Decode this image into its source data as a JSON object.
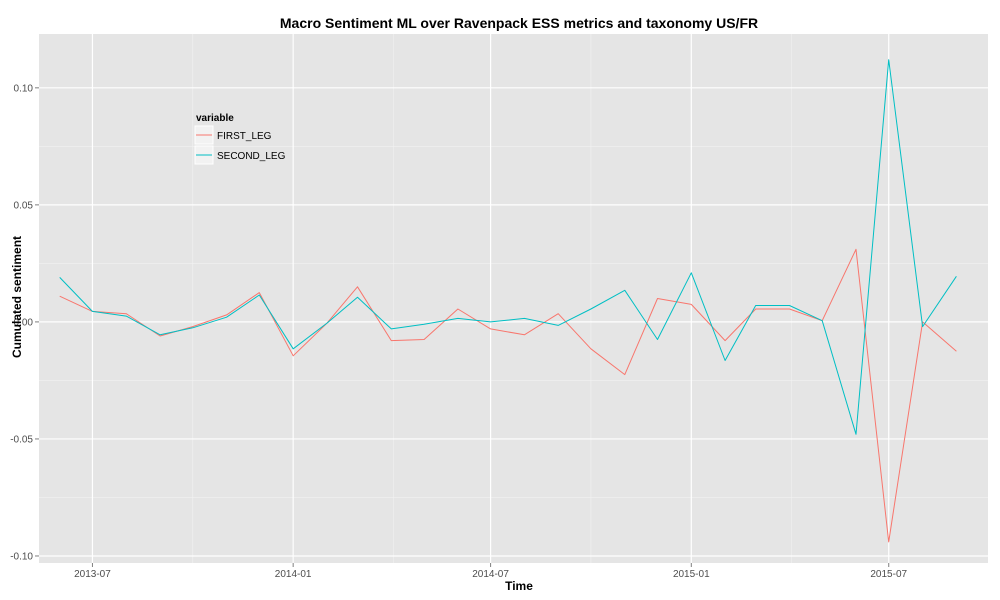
{
  "chart_data": {
    "type": "line",
    "title": "Macro Sentiment ML over Ravenpack ESS metrics and taxonomy US/FR",
    "xlabel": "Time",
    "ylabel": "Cumulated sentiment",
    "x_tick_labels": [
      "2013-07",
      "2014-01",
      "2014-07",
      "2015-01",
      "2015-07"
    ],
    "y_ticks": [
      -0.1,
      -0.05,
      0.0,
      0.05,
      0.1
    ],
    "y_tick_labels": [
      "-0.10",
      "-0.05",
      "0.00",
      "0.05",
      "0.10"
    ],
    "ylim": [
      -0.103,
      0.123
    ],
    "xlim": [
      "2013-05-13",
      "2015-09-30"
    ],
    "grid": true,
    "legend": {
      "title": "variable",
      "position": "top-left"
    },
    "x": [
      "2013-06-01",
      "2013-07-01",
      "2013-08-01",
      "2013-09-01",
      "2013-10-01",
      "2013-11-01",
      "2013-12-01",
      "2014-01-01",
      "2014-02-01",
      "2014-03-01",
      "2014-04-01",
      "2014-05-01",
      "2014-06-01",
      "2014-07-01",
      "2014-08-01",
      "2014-09-01",
      "2014-10-01",
      "2014-11-01",
      "2014-12-01",
      "2015-01-01",
      "2015-02-01",
      "2015-03-01",
      "2015-04-01",
      "2015-05-01",
      "2015-06-01",
      "2015-07-01",
      "2015-08-01",
      "2015-09-01"
    ],
    "series": [
      {
        "name": "FIRST_LEG",
        "color": "#f8766d",
        "values": [
          0.011,
          0.0045,
          0.0035,
          -0.006,
          -0.002,
          0.003,
          0.0125,
          -0.0145,
          -0.0005,
          0.015,
          -0.008,
          -0.0075,
          0.0055,
          -0.003,
          -0.0055,
          0.0035,
          -0.0115,
          -0.0225,
          0.01,
          0.0075,
          -0.008,
          0.0055,
          0.0055,
          0.0005,
          0.031,
          -0.094,
          0.0,
          -0.0125
        ]
      },
      {
        "name": "SECOND_LEG",
        "color": "#00bfc4",
        "values": [
          0.019,
          0.0045,
          0.0025,
          -0.0055,
          -0.0025,
          0.002,
          0.0115,
          -0.0115,
          -0.0005,
          0.0105,
          -0.003,
          -0.001,
          0.0015,
          0.0,
          0.0015,
          -0.0015,
          0.0055,
          0.0135,
          -0.0075,
          0.021,
          -0.0165,
          0.007,
          0.007,
          0.0005,
          -0.048,
          0.112,
          -0.002,
          0.0195
        ]
      }
    ]
  }
}
